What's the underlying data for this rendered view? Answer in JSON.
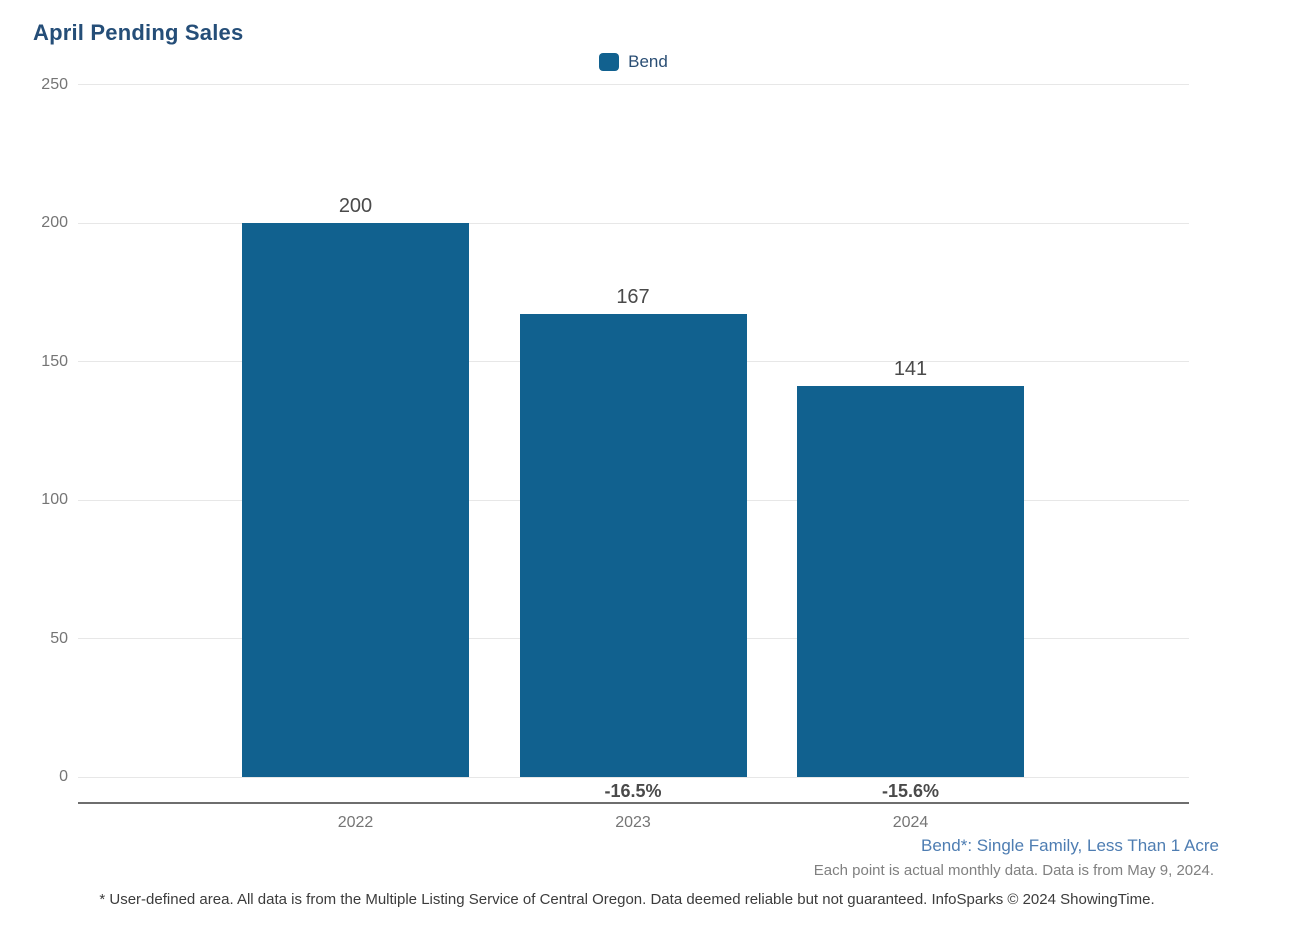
{
  "page": {
    "title": "April Pending Sales"
  },
  "legend": {
    "label": "Bend",
    "swatch_color": "#11618F"
  },
  "chart_data": {
    "type": "bar",
    "title": "April Pending Sales",
    "series_name": "Bend",
    "categories": [
      "2022",
      "2023",
      "2024"
    ],
    "values": [
      200,
      167,
      141
    ],
    "pct_change_labels": [
      "",
      "-16.5%",
      "-15.6%"
    ],
    "bar_color": "#11618F",
    "ylim": [
      0,
      250
    ],
    "yticks": [
      0,
      50,
      100,
      150,
      200,
      250
    ],
    "grid": "horizontal",
    "legend_position": "top-center",
    "xlabel": "",
    "ylabel": ""
  },
  "footnotes": {
    "series_definition": "Bend*: Single Family, Less Than 1 Acre",
    "data_note": "Each point is actual monthly data. Data is from May 9, 2024.",
    "disclaimer": "* User-defined area. All data is from the Multiple Listing Service of Central Oregon. Data deemed reliable but not guaranteed. InfoSparks © 2024 ShowingTime."
  },
  "colors": {
    "bar": "#11618F",
    "title": "#254E78",
    "gridline": "#E7E7E7",
    "axis_line": "#6E6E6E",
    "tick_label": "#757575",
    "value_label": "#4A4A4A",
    "series_footnote": "#4E7DB2"
  }
}
